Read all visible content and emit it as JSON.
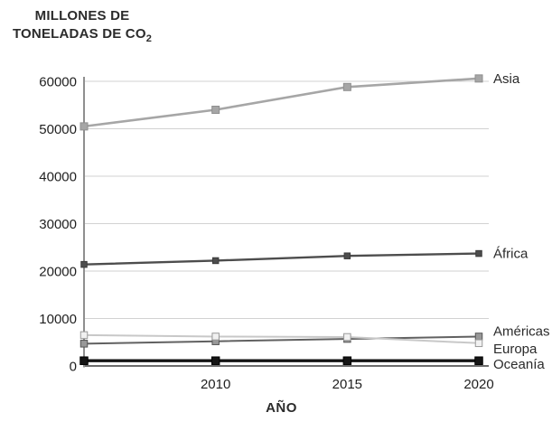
{
  "title": {
    "line1": "MILLONES DE",
    "line2_prefix": "TONELADAS DE CO",
    "sub": "2"
  },
  "chart_data": {
    "type": "line",
    "title": "MILLONES DE TONELADAS DE CO₂",
    "xlabel": "AÑO",
    "ylabel": "MILLONES DE TONELADAS DE CO₂",
    "x_tick_labels": [
      "",
      "2010",
      "2015",
      "2020"
    ],
    "ylim": [
      0,
      60000
    ],
    "y_ticks": [
      0,
      10000,
      20000,
      30000,
      40000,
      50000,
      60000
    ],
    "grid": true,
    "legend_position": "right",
    "axis_color": "#8f8f8f",
    "grid_color": "#d2d2d2",
    "baseline_color": "#3c3c3c",
    "tick_label_color": "#1f1f1f",
    "legend_label_color": "#2a2a2a",
    "series": [
      {
        "name": "Asia",
        "values": [
          50500,
          54000,
          58800,
          60600
        ],
        "color": "#a6a6a6",
        "marker_fill": "#a6a6a6",
        "marker_stroke": "#8f8f8f",
        "line_width": 2.6,
        "marker_size": 8,
        "legend_dy": 0
      },
      {
        "name": "África",
        "values": [
          21400,
          22200,
          23200,
          23700
        ],
        "color": "#4d4d4d",
        "marker_fill": "#4d4d4d",
        "marker_stroke": "#3a3a3a",
        "line_width": 2.4,
        "marker_size": 6.5,
        "legend_dy": 0
      },
      {
        "name": "Américas",
        "values": [
          4700,
          5200,
          5700,
          6200
        ],
        "color": "#616161",
        "marker_fill": "#999999",
        "marker_stroke": "#555555",
        "line_width": 2,
        "marker_size": 7.5,
        "legend_dy": -6
      },
      {
        "name": "Europa",
        "values": [
          6500,
          6200,
          6100,
          4800
        ],
        "color": "#c8c8c8",
        "marker_fill": "#f1f1f1",
        "marker_stroke": "#9a9a9a",
        "line_width": 2,
        "marker_size": 7.5,
        "legend_dy": 6
      },
      {
        "name": "Oceanía",
        "values": [
          1100,
          1100,
          1100,
          1100
        ],
        "color": "#151515",
        "marker_fill": "#151515",
        "marker_stroke": "#000000",
        "line_width": 3.4,
        "marker_size": 8.5,
        "legend_dy": 4
      }
    ]
  }
}
